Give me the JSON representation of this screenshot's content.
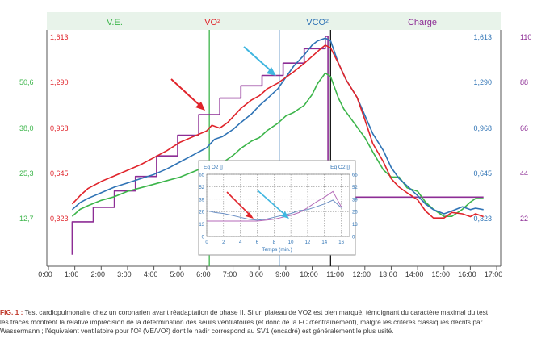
{
  "chart_data": {
    "type": "line",
    "header": {
      "ve": "V.E.",
      "vo2": "VO²",
      "vco2": "VCO²",
      "charge": "Charge"
    },
    "x_ticks": [
      "0:00",
      "1:00",
      "2:00",
      "3:00",
      "4:00",
      "5:00",
      "6:00",
      "7:00",
      "8:00",
      "9:00",
      "10:00",
      "11:00",
      "12:00",
      "13:00",
      "14:00",
      "15:00",
      "16:00",
      "17:00"
    ],
    "x_range": [
      0,
      17
    ],
    "y_left_ve": [
      "12,7",
      "25,3",
      "38,0",
      "50,6"
    ],
    "y_left_vo2": [
      "0,323",
      "0,645",
      "0,968",
      "1,290",
      "1,613"
    ],
    "y_right_vco2": [
      "0,323",
      "0,645",
      "0,968",
      "1,290",
      "1,613"
    ],
    "y_right_charge": [
      "22",
      "44",
      "66",
      "88",
      "110"
    ],
    "colors": {
      "ve": "#3cb54a",
      "vo2": "#e0242b",
      "vco2": "#2f73b5",
      "charge": "#8d2d95",
      "header_bg": "#e8f3ea",
      "vline_vo2": "#3cb54a",
      "vline_vco2": "#2f73b5",
      "vline_peak": "#1a1a1a"
    },
    "thresholds": {
      "sv1_min": 6.1,
      "sv2_min": 8.75,
      "peak_min": 10.7
    },
    "series": [
      {
        "name": "V.E.",
        "key": "ve",
        "x": [
          0.9,
          1.2,
          1.5,
          2,
          2.5,
          3,
          3.5,
          4,
          4.5,
          5,
          5.5,
          6,
          6.3,
          6.6,
          7,
          7.3,
          7.7,
          8,
          8.3,
          8.7,
          9,
          9.3,
          9.7,
          10,
          10.2,
          10.5,
          10.7,
          11,
          11.2,
          11.5,
          12,
          12.3,
          12.7,
          13,
          13.3,
          13.6,
          14,
          14.3,
          14.6,
          15,
          15.3,
          15.7,
          16,
          16.2,
          16.5
        ],
        "values": [
          13,
          15,
          16,
          17.5,
          18.5,
          20,
          21,
          22,
          23,
          24,
          25.5,
          27,
          28,
          28,
          30,
          32,
          34,
          35,
          37,
          39,
          41,
          42,
          44,
          47,
          50,
          53,
          52,
          46,
          43,
          40,
          35,
          31,
          26,
          24,
          24,
          21,
          20,
          17,
          15,
          13,
          13,
          15,
          17,
          18,
          18
        ]
      },
      {
        "name": "VO²",
        "key": "vo2",
        "x": [
          0.9,
          1.2,
          1.5,
          2,
          2.5,
          3,
          3.5,
          4,
          4.5,
          5,
          5.5,
          6,
          6.2,
          6.5,
          6.8,
          7,
          7.3,
          7.7,
          8,
          8.3,
          8.7,
          9,
          9.3,
          9.7,
          10,
          10.3,
          10.5,
          10.7,
          11,
          11.3,
          11.7,
          12,
          12.3,
          12.7,
          13,
          13.3,
          13.6,
          14,
          14.3,
          14.6,
          15,
          15.3,
          15.7,
          16,
          16.2,
          16.5
        ],
        "values": [
          0.42,
          0.48,
          0.53,
          0.58,
          0.62,
          0.66,
          0.7,
          0.75,
          0.8,
          0.86,
          0.9,
          0.94,
          0.98,
          0.96,
          1.0,
          1.04,
          1.1,
          1.16,
          1.19,
          1.24,
          1.28,
          1.32,
          1.36,
          1.42,
          1.47,
          1.52,
          1.55,
          1.53,
          1.42,
          1.3,
          1.18,
          1.02,
          0.85,
          0.72,
          0.6,
          0.54,
          0.5,
          0.45,
          0.37,
          0.32,
          0.32,
          0.36,
          0.35,
          0.33,
          0.35,
          0.33
        ]
      },
      {
        "name": "VCO²",
        "key": "vco2",
        "x": [
          0.9,
          1.2,
          1.5,
          2,
          2.5,
          3,
          3.5,
          4,
          4.5,
          5,
          5.5,
          6,
          6.3,
          6.6,
          7,
          7.3,
          7.7,
          8,
          8.3,
          8.7,
          9,
          9.3,
          9.7,
          10,
          10.2,
          10.5,
          10.7,
          11,
          11.3,
          11.7,
          12,
          12.3,
          12.7,
          13,
          13.3,
          13.6,
          14,
          14.3,
          14.6,
          15,
          15.3,
          15.7,
          16,
          16.2,
          16.5
        ],
        "values": [
          0.38,
          0.43,
          0.46,
          0.5,
          0.54,
          0.57,
          0.6,
          0.63,
          0.67,
          0.72,
          0.77,
          0.82,
          0.88,
          0.9,
          0.95,
          1.0,
          1.06,
          1.12,
          1.17,
          1.24,
          1.32,
          1.4,
          1.48,
          1.55,
          1.58,
          1.6,
          1.58,
          1.42,
          1.3,
          1.18,
          1.05,
          0.92,
          0.8,
          0.68,
          0.6,
          0.55,
          0.48,
          0.42,
          0.38,
          0.35,
          0.37,
          0.4,
          0.38,
          0.39,
          0.38
        ]
      },
      {
        "name": "Charge",
        "key": "charge",
        "x": [
          0.9,
          0.9,
          1.7,
          1.7,
          2.5,
          2.5,
          3.3,
          3.3,
          4.1,
          4.1,
          4.9,
          4.9,
          5.7,
          5.7,
          6.5,
          6.5,
          7.3,
          7.3,
          8.1,
          8.1,
          8.9,
          8.9,
          9.7,
          9.7,
          10.5,
          10.5,
          10.6,
          10.6,
          16.5
        ],
        "values": [
          4,
          20,
          20,
          27,
          27,
          35,
          35,
          42,
          42,
          52,
          52,
          62,
          62,
          72,
          72,
          80,
          80,
          86,
          86,
          91,
          91,
          97,
          97,
          104,
          104,
          110,
          110,
          32,
          32
        ]
      }
    ],
    "inset": {
      "title_left": "Eq O2 []",
      "title_right": "Eq O2 []",
      "xlabel": "Temps (min.)",
      "x_ticks": [
        "0",
        "2",
        "4",
        "6",
        "8",
        "10",
        "12",
        "14",
        "16"
      ],
      "y_ticks_left": [
        "0",
        "13",
        "26",
        "39",
        "52",
        "65"
      ],
      "y_ticks_right": [
        "0",
        "13",
        "26",
        "39",
        "52",
        "65"
      ],
      "ylim": [
        0,
        65
      ],
      "xlim": [
        0,
        17
      ],
      "series": [
        {
          "key": "eq_o2",
          "x": [
            0,
            1,
            2,
            3,
            4,
            5,
            6,
            7,
            8,
            9,
            10,
            11,
            12,
            13,
            14,
            15,
            16
          ],
          "values": [
            27,
            25,
            24,
            22,
            20,
            18,
            17,
            18,
            20,
            22,
            24,
            27,
            28,
            31,
            34,
            38,
            30
          ]
        },
        {
          "key": "eq_o2_b",
          "x": [
            0,
            1,
            2,
            3,
            4,
            5,
            6,
            7,
            8,
            9,
            10,
            11,
            12,
            13,
            14,
            15,
            16
          ],
          "values": [
            16,
            16,
            16,
            16,
            16,
            16,
            16,
            17,
            18,
            20,
            22,
            25,
            30,
            36,
            41,
            47,
            31
          ]
        }
      ]
    }
  },
  "caption": {
    "fig_label": "FIG. 1 :",
    "line1": " Test cardiopulmonaire chez un coronarien avant réadaptation de phase II. Si un plateau de VO2 est bien marqué, témoignant du caractère maximal du test",
    "line2": "les tracés montrent la relative imprécision de la détermination des seuils ventilatoires (et donc de la FC d'entraînement), malgré les critères classiques décrits par",
    "line3": "Wassermann ; l'équivalent ventilatoire pour l'O² (VE/VO²) dont le nadir correspond au SV1 (encadré) est généralement le plus usité."
  }
}
